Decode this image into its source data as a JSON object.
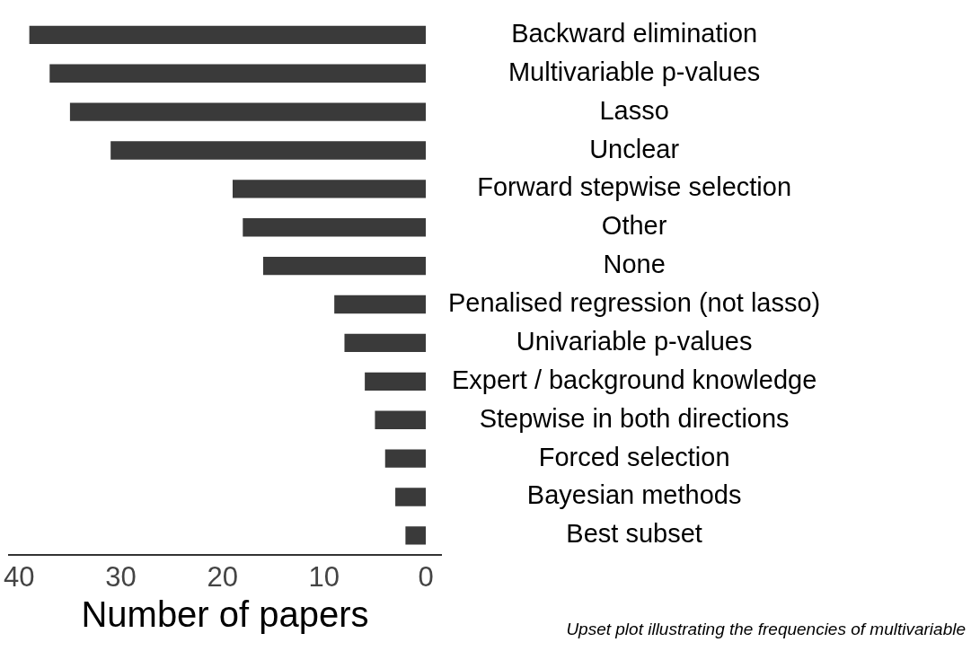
{
  "chart_data": {
    "type": "bar",
    "orientation": "horizontal",
    "xlabel": "Number of papers",
    "categories": [
      "Backward elimination",
      "Multivariable p-values",
      "Lasso",
      "Unclear",
      "Forward stepwise selection",
      "Other",
      "None",
      "Penalised regression (not lasso)",
      "Univariable p-values",
      "Expert / background knowledge",
      "Stepwise in both directions",
      "Forced selection",
      "Bayesian methods",
      "Best subset"
    ],
    "values": [
      39,
      37,
      35,
      31,
      19,
      18,
      16,
      9,
      8,
      6,
      5,
      4,
      3,
      2
    ],
    "color": "#3a3a3a",
    "xlim": [
      41,
      -1.5
    ],
    "xticks": [
      40,
      30,
      20,
      10,
      0
    ],
    "grid": false,
    "legend": false,
    "annotations": [
      "Upset plot illustrating the frequencies of multivariable"
    ]
  }
}
